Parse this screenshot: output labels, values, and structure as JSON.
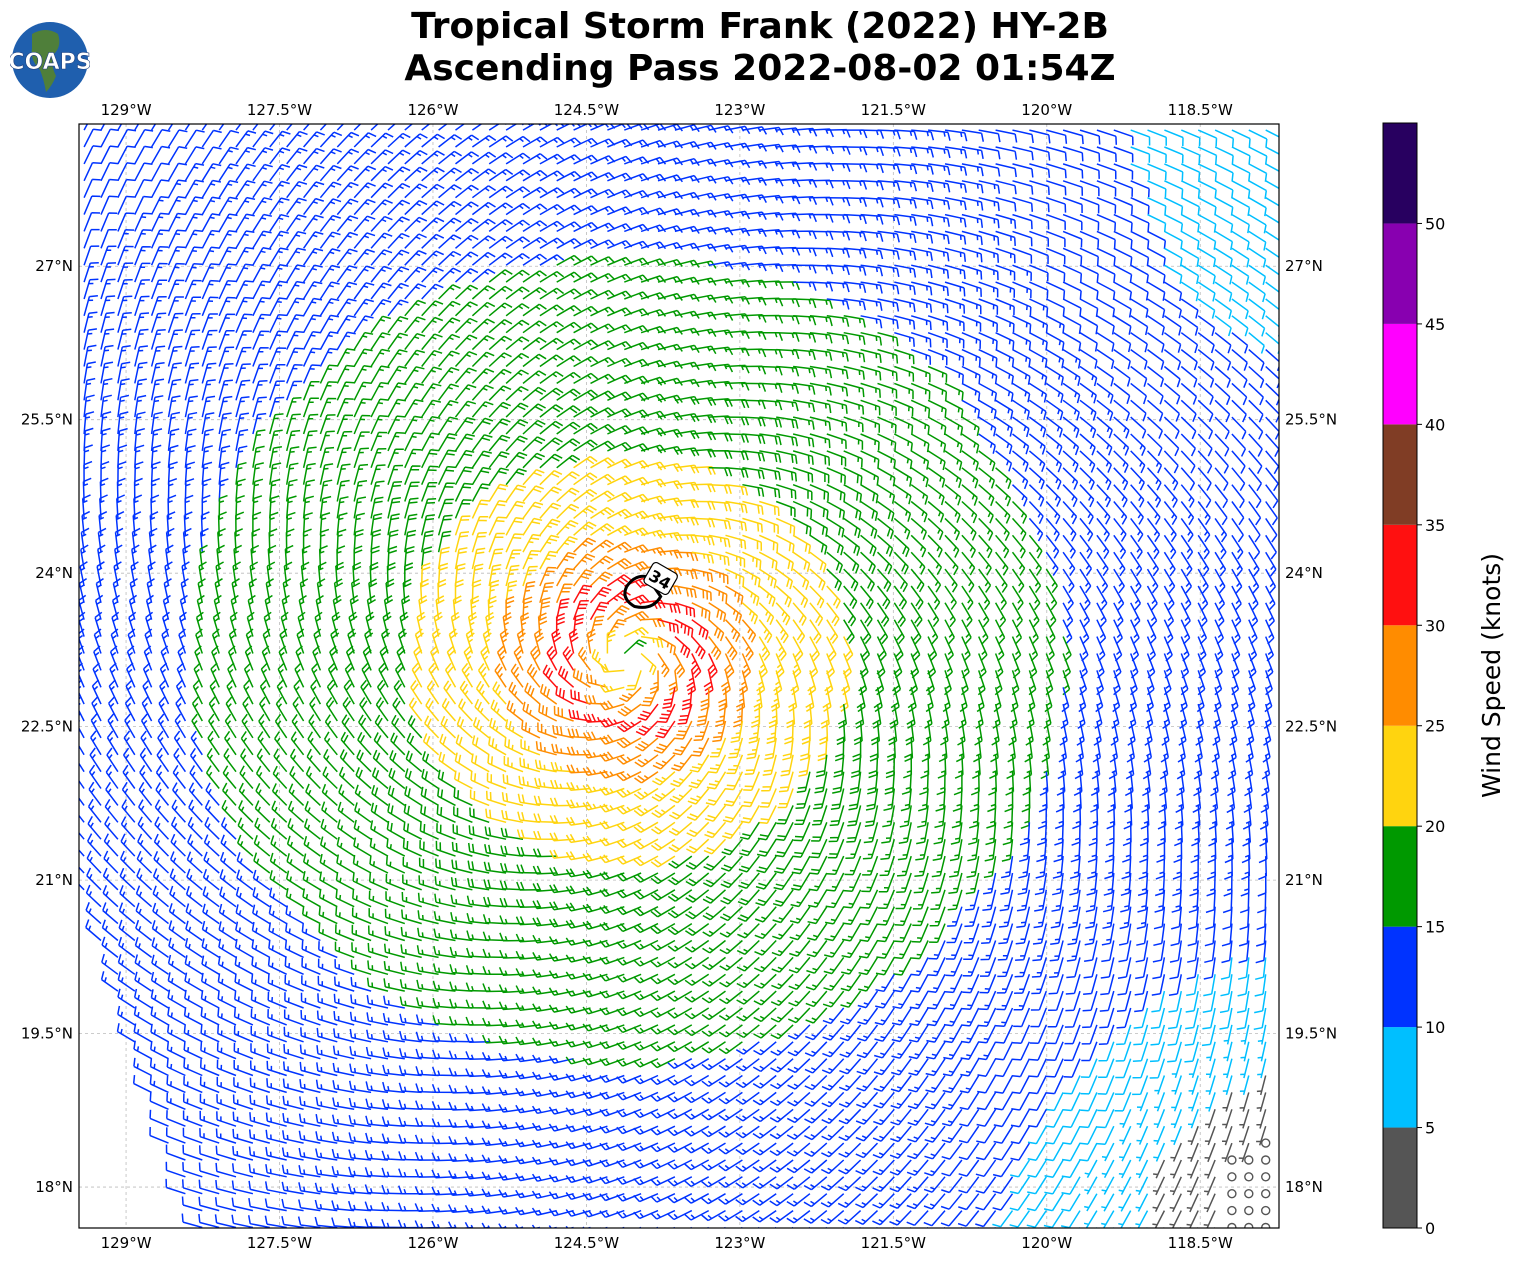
{
  "header": {
    "title_line1": "Tropical Storm Frank (2022) HY-2B",
    "title_line2": "Ascending Pass 2022-08-02 01:54Z",
    "logo_text": "COAPS"
  },
  "chart_data": {
    "type": "barb",
    "title": "Tropical Storm Frank (2022) HY-2B Ascending Pass 2022-08-02 01:54Z",
    "xlabel": "",
    "ylabel": "",
    "xlim": [
      -129.46,
      -117.73
    ],
    "ylim": [
      17.6,
      28.39
    ],
    "xticks": [
      {
        "value": -129,
        "label": "129°W"
      },
      {
        "value": -127.5,
        "label": "127.5°W"
      },
      {
        "value": -126,
        "label": "126°W"
      },
      {
        "value": -124.5,
        "label": "124.5°W"
      },
      {
        "value": -123,
        "label": "123°W"
      },
      {
        "value": -121.5,
        "label": "121.5°W"
      },
      {
        "value": -120,
        "label": "120°W"
      },
      {
        "value": -118.5,
        "label": "118.5°W"
      }
    ],
    "yticks": [
      {
        "value": 27,
        "label": "27°N"
      },
      {
        "value": 25.5,
        "label": "25.5°N"
      },
      {
        "value": 24,
        "label": "24°N"
      },
      {
        "value": 22.5,
        "label": "22.5°N"
      },
      {
        "value": 21,
        "label": "21°N"
      },
      {
        "value": 19.5,
        "label": "19.5°N"
      },
      {
        "value": 18,
        "label": "18°N"
      }
    ],
    "grid": true,
    "colorbar": {
      "label": "Wind Speed (knots)",
      "range": [
        0,
        55
      ],
      "ticks": [
        0,
        5,
        10,
        15,
        20,
        25,
        30,
        35,
        40,
        45,
        50
      ],
      "bins": [
        {
          "min": 0,
          "max": 5,
          "color": "#555555"
        },
        {
          "min": 5,
          "max": 10,
          "color": "#00bfff"
        },
        {
          "min": 10,
          "max": 15,
          "color": "#0033ff"
        },
        {
          "min": 15,
          "max": 20,
          "color": "#009900"
        },
        {
          "min": 20,
          "max": 25,
          "color": "#ffd40f"
        },
        {
          "min": 25,
          "max": 30,
          "color": "#ff8c00"
        },
        {
          "min": 30,
          "max": 35,
          "color": "#ff1010"
        },
        {
          "min": 35,
          "max": 40,
          "color": "#803d25"
        },
        {
          "min": 40,
          "max": 45,
          "color": "#ff00ff"
        },
        {
          "min": 45,
          "max": 50,
          "color": "#8800b0"
        },
        {
          "min": 50,
          "max": 55,
          "color": "#280060"
        }
      ]
    },
    "wind_field": {
      "description": "cyclonic (counter-clockwise) circulation, approximated",
      "center": [
        -124.1,
        23.15
      ],
      "max_wind_kt": 33,
      "radius_max_wind_deg": 0.6,
      "grid_spacing_deg": 0.165
    },
    "contour": {
      "level": 34,
      "label": "34",
      "center": [
        -123.95,
        23.85
      ]
    }
  }
}
